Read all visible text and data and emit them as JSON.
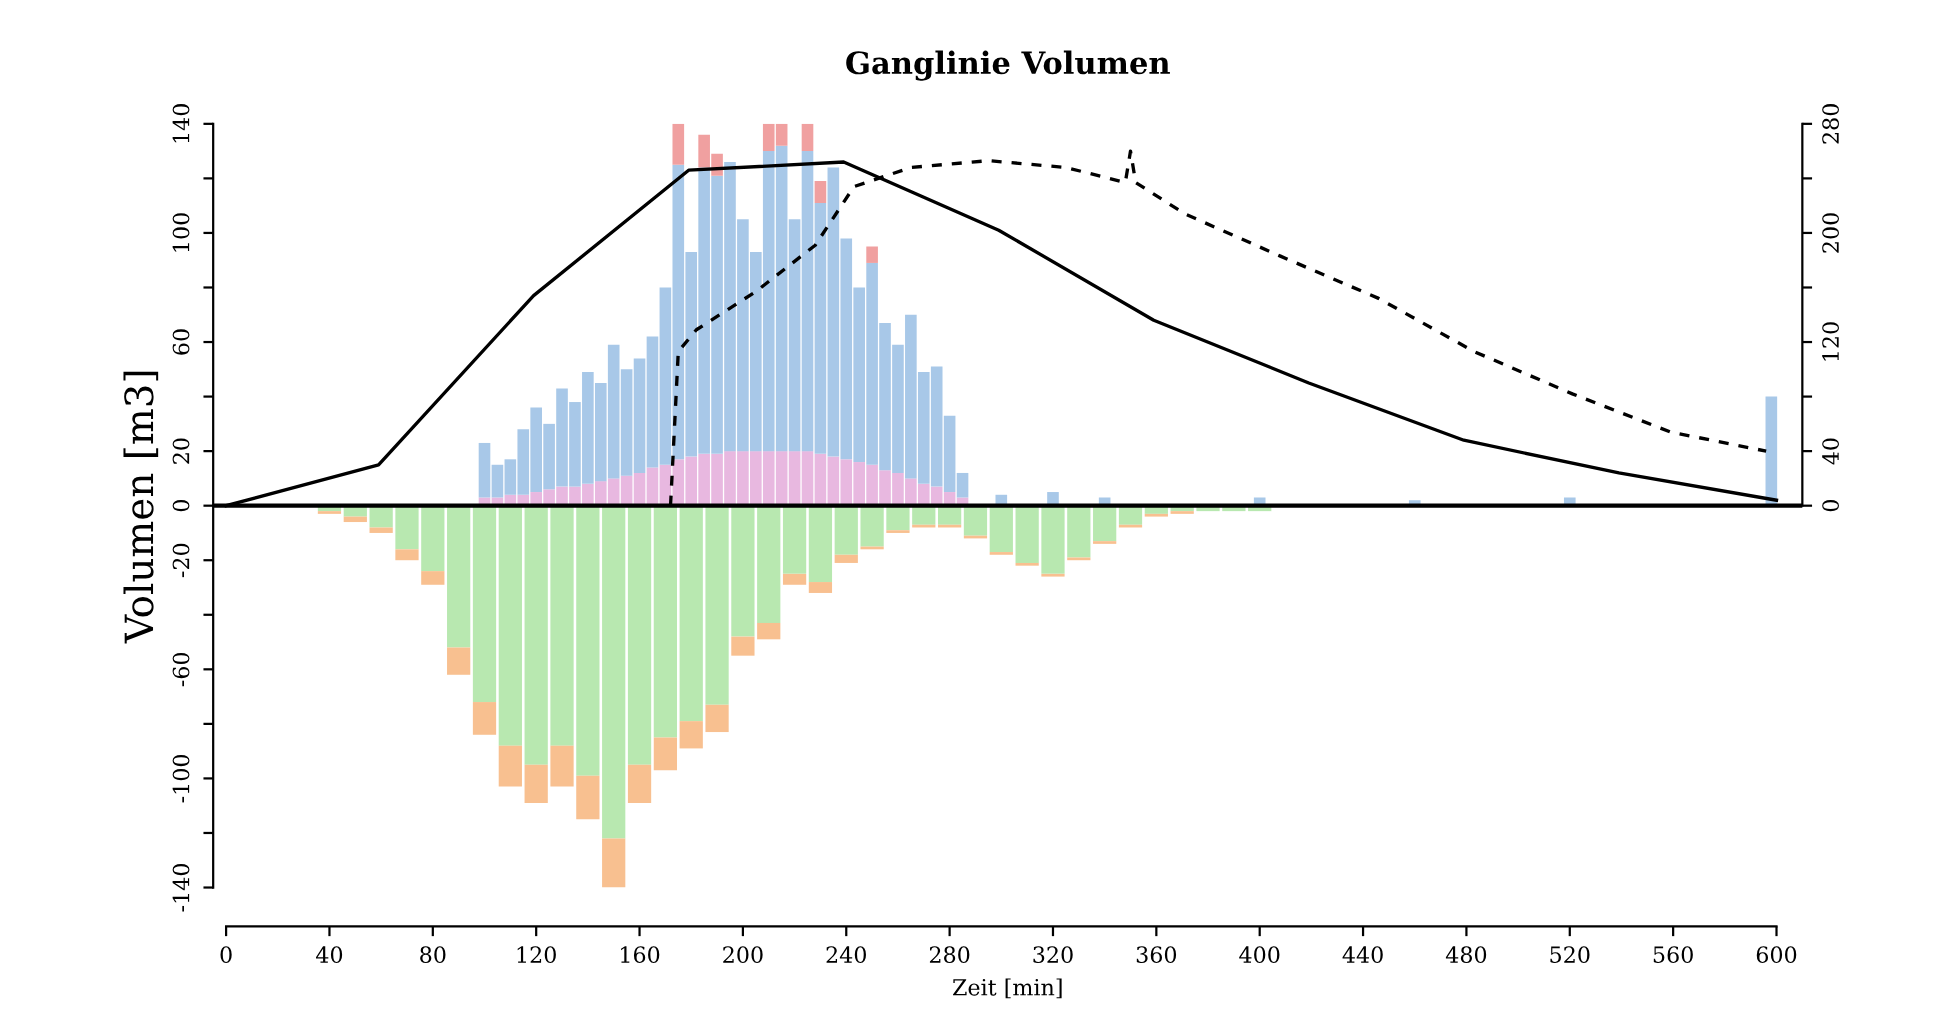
{
  "chart_data": {
    "type": "bar",
    "title": "Ganglinie Volumen",
    "xlabel": "Zeit [min]",
    "ylabel": "Volumen [m3]",
    "stacked": true,
    "xlim": [
      -5,
      610
    ],
    "xticks": [
      0,
      40,
      80,
      120,
      160,
      200,
      240,
      280,
      320,
      360,
      400,
      440,
      480,
      520,
      560,
      600
    ],
    "ylim": [
      -140,
      140
    ],
    "yticks": [
      -140,
      {
        "value": -120,
        "label": null
      },
      -100,
      {
        "value": -80,
        "label": null
      },
      -60,
      {
        "value": -40,
        "label": null
      },
      -20,
      0,
      20,
      {
        "value": 40,
        "label": null
      },
      60,
      {
        "value": 80,
        "label": null
      },
      100,
      {
        "value": 120,
        "label": null
      },
      140
    ],
    "y2lim": [
      -280,
      280
    ],
    "y2ticks": [
      0,
      40,
      {
        "value": 80,
        "label": null
      },
      120,
      {
        "value": 160,
        "label": null
      },
      200,
      {
        "value": 240,
        "label": null
      },
      280
    ],
    "grid": false,
    "legend": false,
    "ref_lines": [
      {
        "axis": "y",
        "value": 0,
        "color": "#000000"
      }
    ],
    "series": [
      {
        "color": "#e8b8e0",
        "x": [
          100,
          105,
          110,
          115,
          120,
          125,
          130,
          135,
          140,
          145,
          150,
          155,
          160,
          165,
          170,
          175,
          180,
          185,
          190,
          195,
          200,
          205,
          210,
          215,
          220,
          225,
          230,
          235,
          240,
          245,
          250,
          255,
          260,
          265,
          270,
          275,
          280,
          285,
          300,
          320,
          340,
          400,
          460,
          520,
          598
        ],
        "values": [
          3,
          3,
          4,
          4,
          5,
          6,
          7,
          7,
          8,
          9,
          10,
          11,
          12,
          14,
          15,
          17,
          18,
          19,
          19,
          20,
          20,
          20,
          20,
          20,
          20,
          20,
          19,
          18,
          17,
          16,
          15,
          13,
          12,
          10,
          8,
          7,
          5,
          3,
          0,
          0,
          0,
          0,
          0,
          0,
          0
        ]
      },
      {
        "color": "#a8c8e8",
        "x": [
          100,
          105,
          110,
          115,
          120,
          125,
          130,
          135,
          140,
          145,
          150,
          155,
          160,
          165,
          170,
          175,
          180,
          185,
          190,
          195,
          200,
          205,
          210,
          215,
          220,
          225,
          230,
          235,
          240,
          245,
          250,
          255,
          260,
          265,
          270,
          275,
          280,
          285,
          300,
          320,
          340,
          400,
          460,
          520,
          598
        ],
        "values": [
          20,
          12,
          13,
          24,
          31,
          24,
          36,
          31,
          41,
          36,
          49,
          39,
          42,
          48,
          65,
          108,
          75,
          105,
          102,
          106,
          85,
          73,
          110,
          112,
          85,
          110,
          92,
          106,
          81,
          64,
          74,
          54,
          47,
          60,
          41,
          44,
          28,
          9,
          4,
          5,
          3,
          3,
          2,
          3,
          40
        ]
      },
      {
        "color": "#f0a0a0",
        "x": [
          100,
          105,
          110,
          115,
          120,
          125,
          130,
          135,
          140,
          145,
          150,
          155,
          160,
          165,
          170,
          175,
          180,
          185,
          190,
          195,
          200,
          205,
          210,
          215,
          220,
          225,
          230,
          235,
          240,
          245,
          250,
          255,
          260,
          265,
          270,
          275,
          280,
          285,
          300,
          320,
          340,
          400,
          460,
          520,
          598
        ],
        "values": [
          0,
          0,
          0,
          0,
          0,
          0,
          0,
          0,
          0,
          0,
          0,
          0,
          0,
          0,
          0,
          15,
          0,
          12,
          8,
          0,
          0,
          0,
          10,
          8,
          0,
          10,
          8,
          0,
          0,
          0,
          6,
          0,
          0,
          0,
          0,
          0,
          0,
          0,
          0,
          0,
          0,
          0,
          0,
          0,
          0
        ]
      },
      {
        "color": "#b8e8b0",
        "x": [
          40,
          50,
          60,
          70,
          80,
          90,
          100,
          110,
          120,
          130,
          140,
          150,
          160,
          170,
          180,
          190,
          200,
          210,
          220,
          230,
          240,
          250,
          260,
          270,
          280,
          290,
          300,
          310,
          320,
          330,
          340,
          350,
          360,
          370,
          380,
          390,
          400
        ],
        "values": [
          -2,
          -4,
          -8,
          -16,
          -24,
          -52,
          -72,
          -88,
          -95,
          -88,
          -99,
          -122,
          -95,
          -85,
          -79,
          -73,
          -48,
          -43,
          -25,
          -28,
          -18,
          -15,
          -9,
          -7,
          -7,
          -11,
          -17,
          -21,
          -25,
          -19,
          -13,
          -7,
          -3,
          -2,
          -2,
          -2,
          -2
        ]
      },
      {
        "color": "#f8c090",
        "x": [
          40,
          50,
          60,
          70,
          80,
          90,
          100,
          110,
          120,
          130,
          140,
          150,
          160,
          170,
          180,
          190,
          200,
          210,
          220,
          230,
          240,
          250,
          260,
          270,
          280,
          290,
          300,
          310,
          320,
          330,
          340,
          350,
          360,
          370,
          380,
          390,
          400
        ],
        "values": [
          -1,
          -2,
          -2,
          -4,
          -5,
          -10,
          -12,
          -15,
          -14,
          -15,
          -16,
          -18,
          -14,
          -12,
          -10,
          -10,
          -7,
          -6,
          -4,
          -4,
          -3,
          -1,
          -1,
          -1,
          -1,
          -1,
          -1,
          -1,
          -1,
          -1,
          -1,
          -1,
          -1,
          -1,
          0,
          0,
          0
        ]
      },
      {
        "type": "line",
        "color": "#000000",
        "line_style": "solid",
        "x": [
          0,
          59,
          119,
          179,
          239,
          299,
          359,
          419,
          479,
          539,
          600
        ],
        "values": [
          0,
          15,
          77,
          123,
          126,
          101,
          68,
          45,
          24,
          12,
          2
        ]
      },
      {
        "type": "line",
        "axis": "y2",
        "color": "#000000",
        "line_style": "dashed",
        "x": [
          172,
          175,
          182,
          205,
          228,
          243,
          265,
          295,
          325,
          348,
          350,
          352,
          371,
          408,
          446,
          483,
          521,
          559,
          596
        ],
        "values": [
          0,
          113,
          129,
          157,
          191,
          234,
          248,
          253,
          248,
          237,
          260,
          237,
          214,
          183,
          152,
          113,
          82,
          54,
          40
        ]
      }
    ]
  }
}
